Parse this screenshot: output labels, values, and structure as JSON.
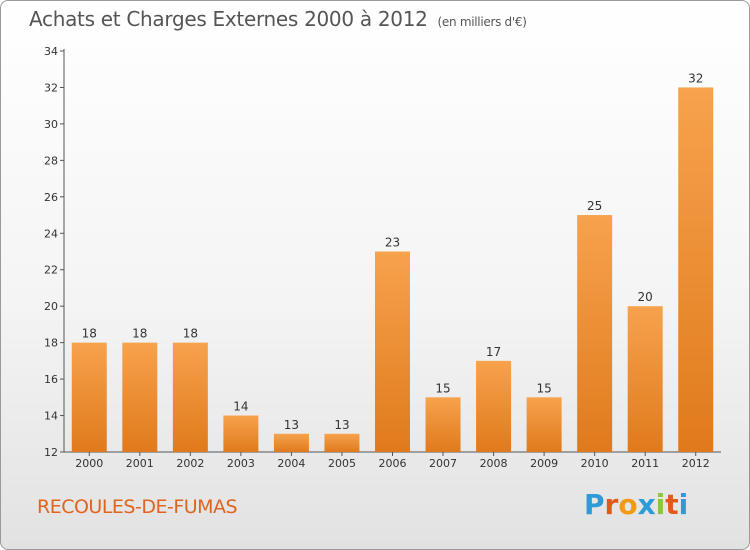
{
  "title": "Achats et Charges Externes 2000 à 2012",
  "unit": "(en milliers d'€)",
  "place": "RECOULES-DE-FUMAS",
  "logo": {
    "letters": [
      "P",
      "r",
      "o",
      "x",
      "i",
      "t",
      "i"
    ],
    "colors": [
      "#2e9ad6",
      "#e05a1b",
      "#f29a16",
      "#2e9ad6",
      "#8cc63e",
      "#e05a1b",
      "#2e9ad6"
    ]
  },
  "colors": {
    "bar_light": "#f7a24d",
    "bar_dark": "#e07a1c",
    "axis": "#555555"
  },
  "chart_data": {
    "type": "bar",
    "categories": [
      "2000",
      "2001",
      "2002",
      "2003",
      "2004",
      "2005",
      "2006",
      "2007",
      "2008",
      "2009",
      "2010",
      "2011",
      "2012"
    ],
    "values": [
      18,
      18,
      18,
      14,
      13,
      13,
      23,
      15,
      17,
      15,
      25,
      20,
      32
    ],
    "ylim": [
      12,
      34
    ],
    "yticks": [
      12,
      14,
      16,
      18,
      20,
      22,
      24,
      26,
      28,
      30,
      32,
      34
    ],
    "grid": false,
    "legend": "none"
  }
}
